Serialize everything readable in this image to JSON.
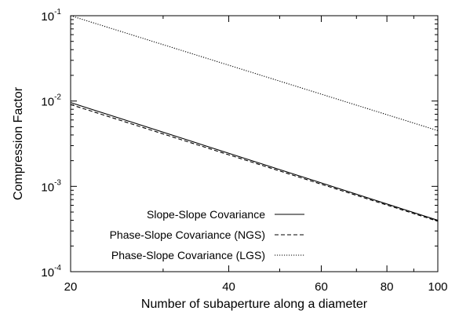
{
  "chart_data": {
    "type": "line",
    "xlabel": "Number of subaperture along a diameter",
    "ylabel": "Compression Factor",
    "x_scale": "log",
    "y_scale": "log",
    "xlim": [
      20,
      100
    ],
    "ylim": [
      0.0001,
      0.1
    ],
    "grid": false,
    "legend_position": "bottom-left",
    "x_ticks": [
      {
        "value": 20,
        "label": "20"
      },
      {
        "value": 40,
        "label": "40"
      },
      {
        "value": 60,
        "label": "60"
      },
      {
        "value": 80,
        "label": "80"
      },
      {
        "value": 100,
        "label": "100"
      }
    ],
    "y_ticks": [
      {
        "value": 0.1,
        "base": "10",
        "exp": "-1"
      },
      {
        "value": 0.01,
        "base": "10",
        "exp": "-2"
      },
      {
        "value": 0.001,
        "base": "10",
        "exp": "-3"
      },
      {
        "value": 0.0001,
        "base": "10",
        "exp": "-4"
      }
    ],
    "series": [
      {
        "name": "Slope-Slope Covariance",
        "style": "solid",
        "x": [
          20,
          100
        ],
        "y": [
          0.0096,
          0.0004
        ]
      },
      {
        "name": "Phase-Slope Covariance (NGS)",
        "style": "dashed",
        "x": [
          20,
          100
        ],
        "y": [
          0.0091,
          0.00039
        ]
      },
      {
        "name": "Phase-Slope Covariance (LGS)",
        "style": "dotted",
        "x": [
          20,
          100
        ],
        "y": [
          0.1,
          0.0045
        ]
      }
    ]
  }
}
